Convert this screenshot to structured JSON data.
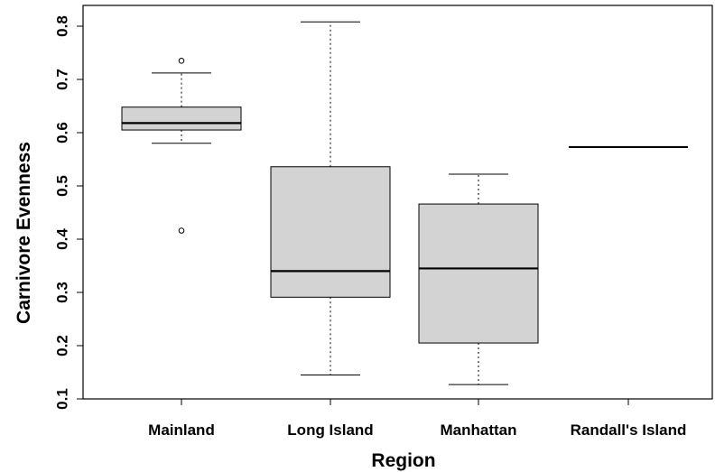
{
  "chart_data": {
    "type": "boxplot",
    "xlabel": "Region",
    "ylabel": "Carnivore Evenness",
    "ylim": [
      0.1,
      0.81
    ],
    "yticks": [
      0.1,
      0.2,
      0.3,
      0.4,
      0.5,
      0.6,
      0.7,
      0.8
    ],
    "grid": false,
    "colors": {
      "box_fill": "#d3d3d3",
      "stroke": "#000000"
    },
    "categories": [
      "Mainland",
      "Long Island",
      "Manhattan",
      "Randall's Island"
    ],
    "boxes": [
      {
        "category": "Mainland",
        "whisker_low": 0.58,
        "q1": 0.605,
        "median": 0.618,
        "q3": 0.648,
        "whisker_high": 0.712,
        "outliers": [
          0.735,
          0.416
        ]
      },
      {
        "category": "Long Island",
        "whisker_low": 0.145,
        "q1": 0.291,
        "median": 0.34,
        "q3": 0.536,
        "whisker_high": 0.808,
        "outliers": []
      },
      {
        "category": "Manhattan",
        "whisker_low": 0.127,
        "q1": 0.205,
        "median": 0.345,
        "q3": 0.466,
        "whisker_high": 0.522,
        "outliers": []
      },
      {
        "category": "Randall's Island",
        "whisker_low": 0.573,
        "q1": 0.573,
        "median": 0.573,
        "q3": 0.573,
        "whisker_high": 0.573,
        "outliers": []
      }
    ]
  }
}
